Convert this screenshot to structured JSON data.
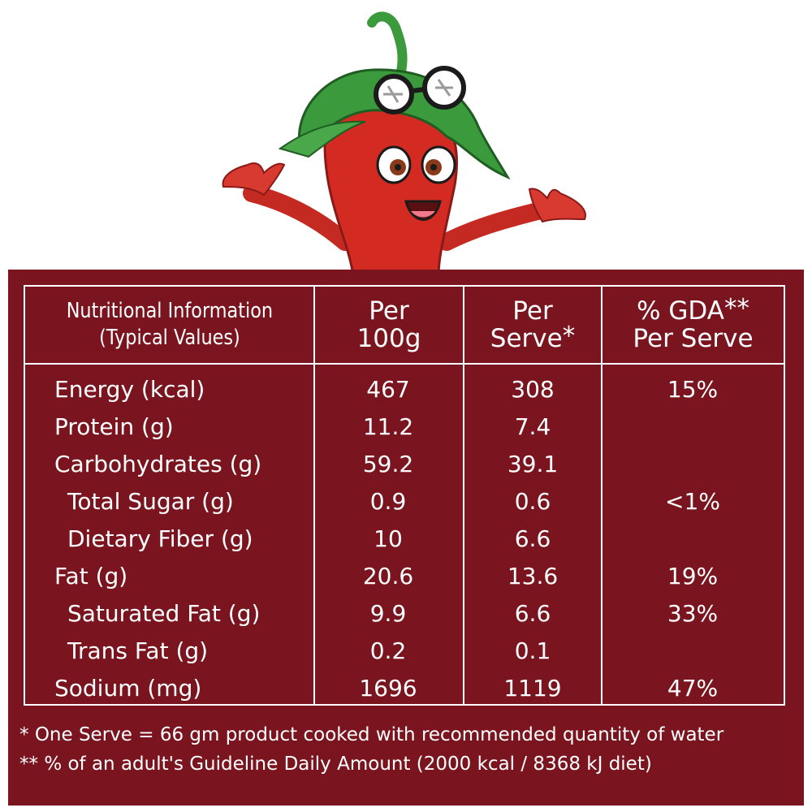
{
  "header": {
    "col1_line1": "Nutritional Information",
    "col1_line2": "(Typical Values)",
    "col2_line1": "Per",
    "col2_line2": "100g",
    "col3_line1": "Per",
    "col3_line2": "Serve",
    "col3_mark": "*",
    "col4_line1": "% GDA",
    "col4_mark": "**",
    "col4_line2": "Per Serve"
  },
  "rows": [
    {
      "name": "Energy (kcal)",
      "per100": "467",
      "perserve": "308",
      "gda": "15%"
    },
    {
      "name": "Protein (g)",
      "per100": "11.2",
      "perserve": "7.4",
      "gda": ""
    },
    {
      "name": "Carbohydrates (g)",
      "per100": "59.2",
      "perserve": "39.1",
      "gda": ""
    },
    {
      "name": "Total Sugar (g)",
      "per100": "0.9",
      "perserve": "0.6",
      "gda": "<1%"
    },
    {
      "name": "Dietary Fiber (g)",
      "per100": "10",
      "perserve": "6.6",
      "gda": ""
    },
    {
      "name": "Fat (g)",
      "per100": "20.6",
      "perserve": "13.6",
      "gda": "19%"
    },
    {
      "name": "Saturated Fat (g)",
      "per100": "9.9",
      "perserve": "6.6",
      "gda": "33%"
    },
    {
      "name": "Trans Fat (g)",
      "per100": "0.2",
      "perserve": "0.1",
      "gda": ""
    },
    {
      "name": "Sodium (mg)",
      "per100": "1696",
      "perserve": "1119",
      "gda": "47%"
    }
  ],
  "footnotes": {
    "note1_mark": "*",
    "note1": "One Serve = 66 gm product cooked with recommended quantity of water",
    "note2_mark": "**",
    "note2": "% of an adult's Guideline Daily Amount (2000 kcal / 8368 kJ diet)"
  },
  "colors": {
    "panel": "#7a1520",
    "chili": "#d32b22",
    "leaf": "#3a9a3c",
    "text": "#ffffff"
  },
  "icons": {
    "mascot": "chili-pepper-mascot-icon"
  }
}
